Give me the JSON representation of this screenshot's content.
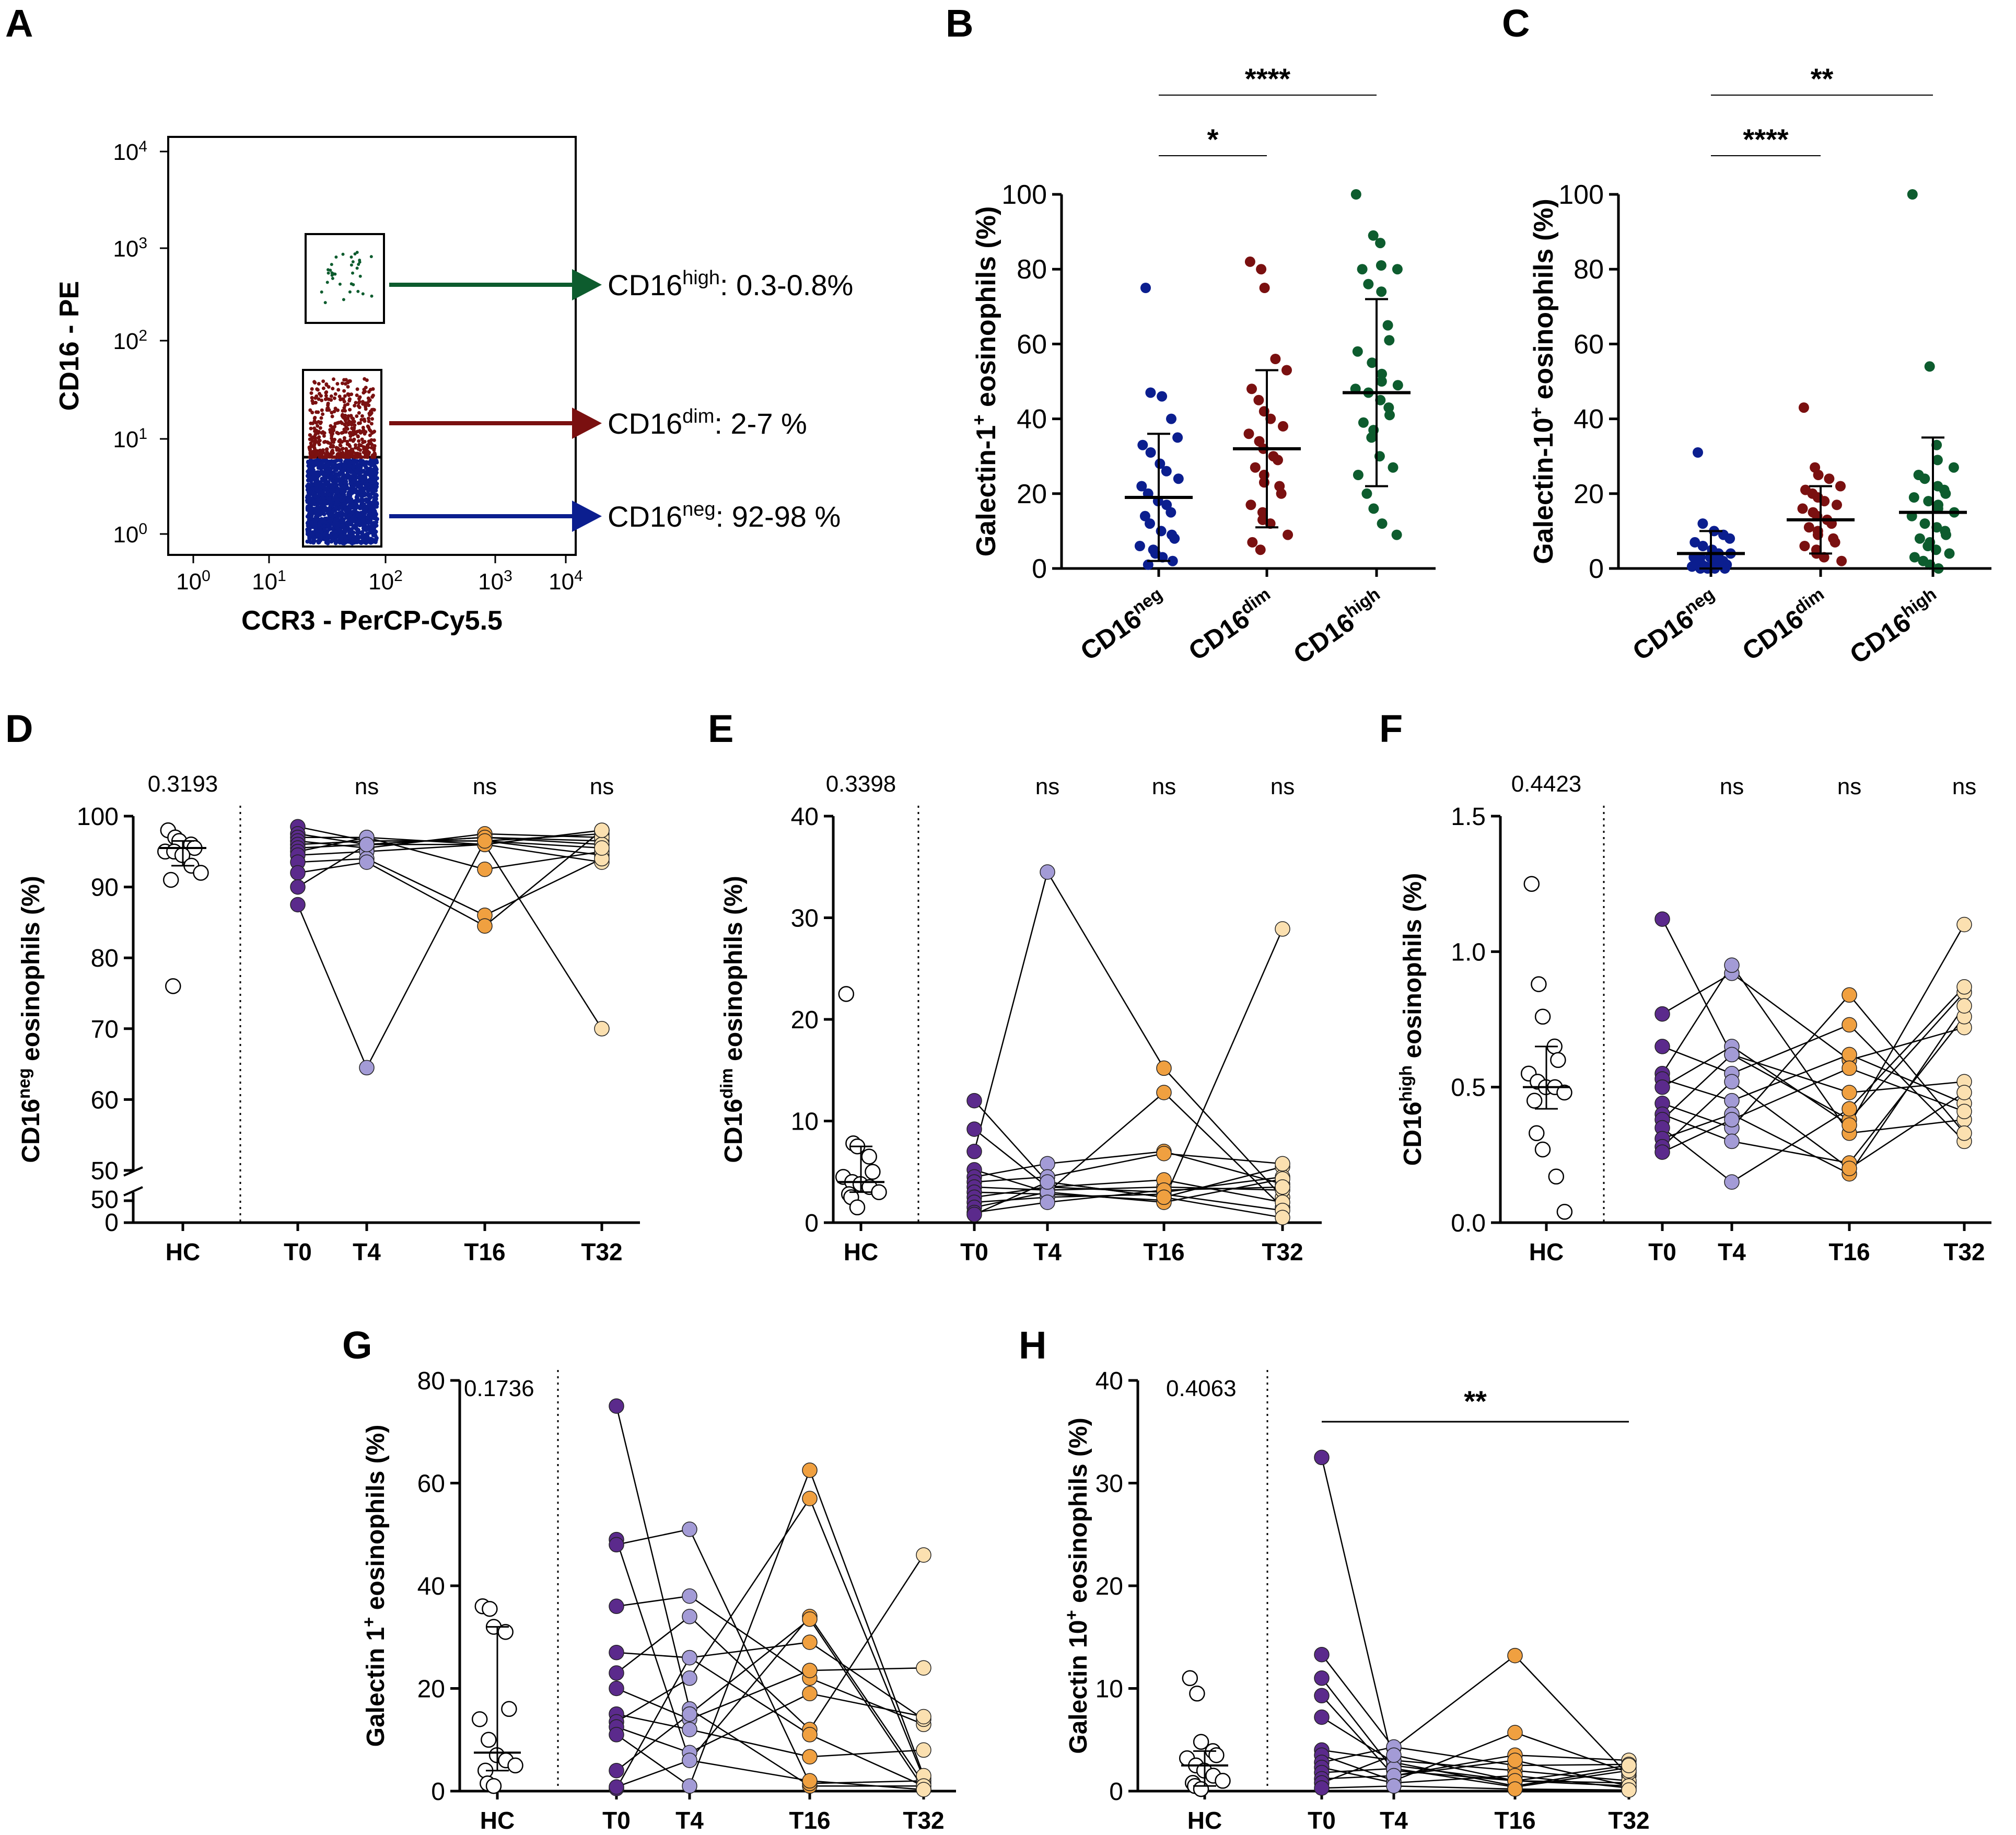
{
  "colors": {
    "neg": "#0b1e8f",
    "dim": "#7a1010",
    "high": "#0d5c2e",
    "t0": "#5b2a8c",
    "t4": "#a39bd6",
    "t16": "#f0a040",
    "t32": "#fbe0b0",
    "hc": "#ffffff",
    "ink": "#000000"
  },
  "panels": {
    "A": {
      "letter": "A",
      "xlabel": "CCR3 - PerCP-Cy5.5",
      "ylabel": "CD16 - PE",
      "tick_base": "10",
      "tick_exps": [
        "0",
        "1",
        "2",
        "3",
        "4"
      ],
      "gates": [
        {
          "key": "high",
          "name": "CD16",
          "sup": "high",
          "range": ": 0.3-0.8%"
        },
        {
          "key": "dim",
          "name": "CD16",
          "sup": "dim",
          "range": ": 2-7 %"
        },
        {
          "key": "neg",
          "name": "CD16",
          "sup": "neg",
          "range": ": 92-98 %"
        }
      ]
    },
    "B": {
      "letter": "B",
      "sig_top": "****",
      "sig_low": "*"
    },
    "C": {
      "letter": "C",
      "sig_top": "**",
      "sig_low": "****"
    },
    "D": {
      "letter": "D",
      "hc_p": "0.3193",
      "ns": [
        "ns",
        "ns",
        "ns"
      ],
      "axis_break_label": "50",
      "axis_zero": "0"
    },
    "E": {
      "letter": "E",
      "hc_p": "0.3398",
      "ns": [
        "ns",
        "ns",
        "ns"
      ]
    },
    "F": {
      "letter": "F",
      "hc_p": "0.4423",
      "ns": [
        "ns",
        "ns",
        "ns"
      ]
    },
    "G": {
      "letter": "G",
      "hc_p": "0.1736"
    },
    "H": {
      "letter": "H",
      "hc_p": "0.4063",
      "sig": "**"
    }
  },
  "chart_data": [
    {
      "id": "B",
      "type": "scatter",
      "ylabel_main": "Galectin-1",
      "ylabel_sup": "+",
      "ylabel_rest": " eosinophils (%)",
      "ylim": [
        0,
        100
      ],
      "yticks": [
        "0",
        "20",
        "40",
        "60",
        "80",
        "100"
      ],
      "categories": [
        {
          "name": "CD16",
          "sup": "neg"
        },
        {
          "name": "CD16",
          "sup": "dim"
        },
        {
          "name": "CD16",
          "sup": "high"
        }
      ],
      "series": [
        {
          "key": "neg",
          "mean": 19,
          "sd_low": 2,
          "sd_high": 36,
          "values": [
            75,
            47,
            46,
            40,
            35,
            33,
            31,
            28,
            26,
            24,
            22,
            20,
            18,
            17,
            15,
            14,
            12,
            10,
            9,
            8,
            6,
            5,
            4,
            3,
            2,
            1
          ]
        },
        {
          "key": "dim",
          "mean": 32,
          "sd_low": 11,
          "sd_high": 53,
          "values": [
            82,
            80,
            75,
            56,
            53,
            48,
            45,
            42,
            40,
            38,
            36,
            34,
            32,
            30,
            29,
            27,
            25,
            23,
            22,
            20,
            17,
            15,
            13,
            12,
            9,
            7,
            5
          ]
        },
        {
          "key": "high",
          "mean": 47,
          "sd_low": 22,
          "sd_high": 72,
          "values": [
            100,
            89,
            87,
            81,
            80,
            80,
            76,
            74,
            65,
            61,
            58,
            55,
            52,
            50,
            49,
            48,
            47,
            45,
            43,
            41,
            39,
            37,
            35,
            30,
            27,
            25,
            20,
            16,
            12,
            9
          ]
        }
      ]
    },
    {
      "id": "C",
      "type": "scatter",
      "ylabel_main": "Galectin-10",
      "ylabel_sup": "+",
      "ylabel_rest": " eosinophils (%)",
      "ylim": [
        0,
        100
      ],
      "yticks": [
        "0",
        "20",
        "40",
        "60",
        "80",
        "100"
      ],
      "categories": [
        {
          "name": "CD16",
          "sup": "neg"
        },
        {
          "name": "CD16",
          "sup": "dim"
        },
        {
          "name": "CD16",
          "sup": "high"
        }
      ],
      "series": [
        {
          "key": "neg",
          "mean": 4,
          "sd_low": 0,
          "sd_high": 10,
          "values": [
            31,
            12,
            10,
            9,
            8,
            7,
            6,
            5,
            4,
            4,
            3,
            3,
            3,
            2,
            2,
            2,
            1,
            1,
            1,
            1,
            0.5,
            0.5,
            0,
            0,
            0,
            0
          ]
        },
        {
          "key": "dim",
          "mean": 13,
          "sd_low": 4,
          "sd_high": 22,
          "values": [
            43,
            27,
            25,
            24,
            22,
            21,
            20,
            19,
            18,
            17,
            16,
            15,
            14,
            13,
            12,
            11,
            10,
            9,
            8,
            7,
            6,
            5,
            4,
            3,
            2
          ]
        },
        {
          "key": "high",
          "mean": 15,
          "sd_low": 0,
          "sd_high": 35,
          "values": [
            100,
            54,
            33,
            29,
            27,
            25,
            24,
            22,
            21,
            20,
            19,
            18,
            17,
            16,
            15,
            14,
            12,
            11,
            10,
            9,
            8,
            7,
            6,
            5,
            4,
            3,
            2,
            1,
            0
          ]
        }
      ]
    },
    {
      "id": "D",
      "type": "line",
      "ylabel_main": "CD16",
      "ylabel_sup": "neg",
      "ylabel_rest": " eosinophils (%)",
      "ylim": [
        50,
        100
      ],
      "yticks": [
        "50",
        "60",
        "70",
        "80",
        "90",
        "100"
      ],
      "xlabels": [
        "HC",
        "T0",
        "T4",
        "T16",
        "T32"
      ],
      "hc": {
        "values": [
          98,
          97,
          96.5,
          96,
          95.5,
          95,
          95,
          94.5,
          93,
          92,
          91,
          76
        ],
        "median": 95.5,
        "q1": 93,
        "q3": 96.5
      },
      "paths": [
        [
          98.5,
          96.5,
          96.5,
          97.5
        ],
        [
          97.5,
          96,
          97,
          96.5
        ],
        [
          97,
          97,
          96,
          98
        ],
        [
          96.5,
          95.5,
          97.5,
          97
        ],
        [
          96,
          96.5,
          96.5,
          94.5
        ],
        [
          95.5,
          96,
          97,
          96
        ],
        [
          95,
          97,
          92.5,
          95
        ],
        [
          94.5,
          95,
          96,
          93.5
        ],
        [
          93.5,
          94,
          86,
          94
        ],
        [
          92,
          93.5,
          84.5,
          98
        ],
        [
          90,
          96,
          96,
          70
        ],
        [
          87.5,
          64.5,
          96.5,
          95.5
        ]
      ]
    },
    {
      "id": "E",
      "type": "line",
      "ylabel_main": "CD16",
      "ylabel_sup": "dim",
      "ylabel_rest": " eosinophils (%)",
      "ylim": [
        0,
        40
      ],
      "yticks": [
        "0",
        "10",
        "20",
        "30",
        "40"
      ],
      "xlabels": [
        "HC",
        "T0",
        "T4",
        "T16",
        "T32"
      ],
      "hc": {
        "values": [
          22.5,
          7.8,
          7.5,
          6.5,
          5,
          4.5,
          4,
          3.8,
          3.5,
          3,
          2.8,
          2.5,
          1.5
        ],
        "median": 4,
        "q1": 3,
        "q3": 7.5
      },
      "paths": [
        [
          12,
          4,
          2.5,
          5.5
        ],
        [
          9.2,
          3.5,
          3,
          4.5
        ],
        [
          7,
          34.5,
          15.2,
          2.5
        ],
        [
          5.2,
          3,
          12.8,
          1.5
        ],
        [
          4.5,
          5.8,
          7,
          3.8
        ],
        [
          4,
          4.5,
          6.8,
          5.8
        ],
        [
          3.5,
          3.2,
          3.5,
          3.2
        ],
        [
          3,
          2.8,
          2.2,
          28.9
        ],
        [
          2.5,
          3.5,
          4.2,
          2
        ],
        [
          2,
          2.5,
          2.8,
          1.2
        ],
        [
          1.5,
          3,
          2,
          4.3
        ],
        [
          1,
          2,
          3.2,
          3.5
        ],
        [
          0.8,
          4,
          2.5,
          0.5
        ]
      ]
    },
    {
      "id": "F",
      "type": "line",
      "ylabel_main": "CD16",
      "ylabel_sup": "high",
      "ylabel_rest": " eosinophils (%)",
      "ylim": [
        0,
        1.5
      ],
      "yticks": [
        "0.0",
        "0.5",
        "1.0",
        "1.5"
      ],
      "xlabels": [
        "HC",
        "T0",
        "T4",
        "T16",
        "T32"
      ],
      "hc": {
        "values": [
          1.25,
          0.88,
          0.76,
          0.65,
          0.6,
          0.55,
          0.52,
          0.5,
          0.5,
          0.48,
          0.45,
          0.33,
          0.27,
          0.17,
          0.04
        ],
        "median": 0.5,
        "q1": 0.42,
        "q3": 0.65
      },
      "paths": [
        [
          1.12,
          0.62,
          0.38,
          0.85
        ],
        [
          0.77,
          0.92,
          0.6,
          0.72
        ],
        [
          0.65,
          0.55,
          0.73,
          0.3
        ],
        [
          0.55,
          0.95,
          0.33,
          0.38
        ],
        [
          0.53,
          0.45,
          0.62,
          0.44
        ],
        [
          0.5,
          0.65,
          0.36,
          1.1
        ],
        [
          0.44,
          0.35,
          0.84,
          0.33
        ],
        [
          0.4,
          0.3,
          0.22,
          0.76
        ],
        [
          0.38,
          0.62,
          0.48,
          0.52
        ],
        [
          0.35,
          0.15,
          0.42,
          0.87
        ],
        [
          0.31,
          0.4,
          0.18,
          0.8
        ],
        [
          0.28,
          0.52,
          0.2,
          0.48
        ],
        [
          0.26,
          0.38,
          0.57,
          0.41
        ]
      ]
    },
    {
      "id": "G",
      "type": "line",
      "ylabel_main": "Galectin 1",
      "ylabel_sup": "+",
      "ylabel_rest": " eosinophils (%)",
      "ylim": [
        0,
        80
      ],
      "yticks": [
        "0",
        "20",
        "40",
        "60",
        "80"
      ],
      "xlabels": [
        "HC",
        "T0",
        "T4",
        "T16",
        "T32"
      ],
      "hc": {
        "values": [
          36,
          35.5,
          32,
          31,
          16,
          14,
          10,
          7,
          6,
          5,
          4,
          1.5,
          1
        ],
        "median": 7.5,
        "q1": 4,
        "q3": 32
      },
      "paths": [
        [
          75,
          16,
          1,
          1
        ],
        [
          49,
          6,
          34,
          1.5
        ],
        [
          48,
          51,
          1.5,
          2
        ],
        [
          36,
          38,
          22,
          13
        ],
        [
          27,
          26,
          29,
          14
        ],
        [
          23,
          34,
          12,
          46
        ],
        [
          20,
          14,
          23.5,
          24
        ],
        [
          15,
          12,
          6.7,
          8
        ],
        [
          13.5,
          22,
          57,
          2.5
        ],
        [
          12.5,
          7.5,
          19,
          14.5
        ],
        [
          11,
          1,
          62.5,
          3
        ],
        [
          4,
          15,
          33.5,
          0.5
        ],
        [
          0.5,
          26,
          11,
          1
        ],
        [
          0.8,
          6,
          2,
          0.3
        ]
      ]
    },
    {
      "id": "H",
      "type": "line",
      "ylabel_main": "Galectin 10",
      "ylabel_sup": "+",
      "ylabel_rest": " eosinophils (%)",
      "ylim": [
        0,
        40
      ],
      "yticks": [
        "0",
        "10",
        "20",
        "30",
        "40"
      ],
      "xlabels": [
        "HC",
        "T0",
        "T4",
        "T16",
        "T32"
      ],
      "hc": {
        "values": [
          11,
          9.5,
          4.8,
          3.9,
          3.5,
          3.2,
          2.5,
          2,
          1.5,
          1,
          0.8,
          0.5,
          0.2
        ],
        "median": 2.5,
        "q1": 0.5,
        "q3": 3.9
      },
      "paths": [
        [
          32.5,
          2.5,
          1,
          0.5
        ],
        [
          13.3,
          4.2,
          13.2,
          1.5
        ],
        [
          11,
          2,
          1,
          0.8
        ],
        [
          9.3,
          1.5,
          3.5,
          3
        ],
        [
          7.2,
          2.8,
          0.5,
          2.3
        ],
        [
          4,
          3,
          2,
          1
        ],
        [
          3.5,
          1,
          5.7,
          1.8
        ],
        [
          2.8,
          4.3,
          2.5,
          2.6
        ],
        [
          2.3,
          0.8,
          1.5,
          0.3
        ],
        [
          1.8,
          2.2,
          0.4,
          2
        ],
        [
          1.2,
          1.5,
          3,
          0.5
        ],
        [
          0.8,
          3.5,
          1,
          2.5
        ],
        [
          0.3,
          0.5,
          0.2,
          0.1
        ]
      ]
    }
  ]
}
